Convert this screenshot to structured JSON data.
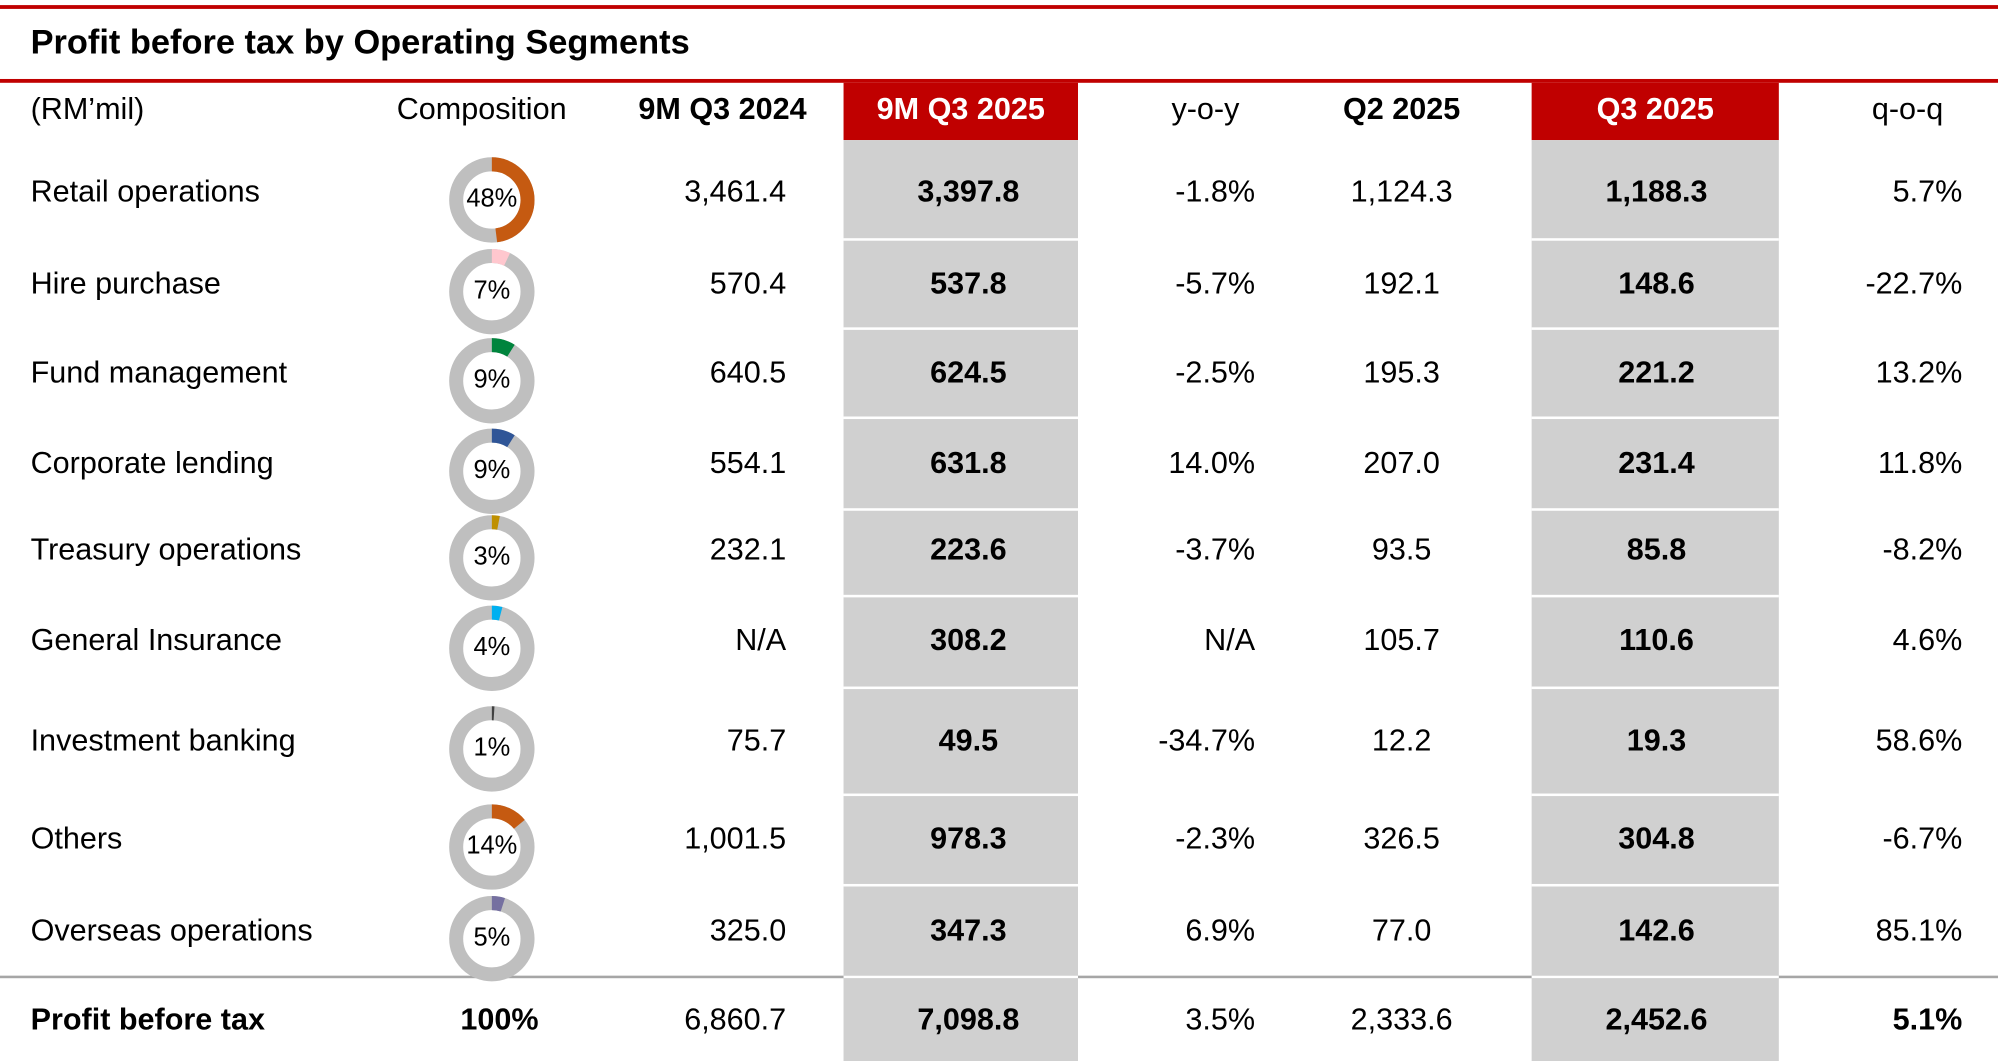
{
  "header": {
    "title": "Profit before tax by Operating Segments",
    "columns": [
      "(RM’mil)",
      "Composition",
      "9M Q3 2024",
      "9M Q3 2025",
      "y-o-y",
      "Q2 2025",
      "Q3 2025",
      "q-o-q"
    ]
  },
  "table": {
    "rows": [
      {
        "label": "Retail operations",
        "composition": {
          "value": 48,
          "label": "48%"
        },
        "color": "#c55a11",
        "cells": [
          "3,461.4",
          "3,397.8",
          "-1.8%",
          "1,124.3",
          "1,188.3",
          "5.7%"
        ]
      },
      {
        "label": "Hire purchase",
        "composition": {
          "value": 7,
          "label": "7%"
        },
        "color": "#ffc7ce",
        "cells": [
          "570.4",
          "537.8",
          "-5.7%",
          "192.1",
          "148.6",
          "-22.7%"
        ]
      },
      {
        "label": "Fund management",
        "composition": {
          "value": 9,
          "label": "9%"
        },
        "color": "#00843d",
        "cells": [
          "640.5",
          "624.5",
          "-2.5%",
          "195.3",
          "221.2",
          "13.2%"
        ]
      },
      {
        "label": "Corporate lending",
        "composition": {
          "value": 9,
          "label": "9%"
        },
        "color": "#2f5597",
        "cells": [
          "554.1",
          "631.8",
          "14.0%",
          "207.0",
          "231.4",
          "11.8%"
        ]
      },
      {
        "label": "Treasury operations",
        "composition": {
          "value": 3,
          "label": "3%"
        },
        "color": "#bf9000",
        "cells": [
          "232.1",
          "223.6",
          "-3.7%",
          "93.5",
          "85.8",
          "-8.2%"
        ]
      },
      {
        "label": "General Insurance",
        "composition": {
          "value": 4,
          "label": "4%"
        },
        "color": "#00b0f0",
        "cells": [
          "N/A",
          "308.2",
          "N/A",
          "105.7",
          "110.6",
          "4.6%"
        ]
      },
      {
        "label": "Investment banking",
        "composition": {
          "value": 1,
          "label": "1%"
        },
        "color": "#404040",
        "cells": [
          "75.7",
          "49.5",
          "-34.7%",
          "12.2",
          "19.3",
          "58.6%"
        ]
      },
      {
        "label": "Others",
        "composition": {
          "value": 14,
          "label": "14%"
        },
        "color": "#c55a11",
        "cells": [
          "1,001.5",
          "978.3",
          "-2.3%",
          "326.5",
          "304.8",
          "-6.7%"
        ]
      },
      {
        "label": "Overseas operations",
        "composition": {
          "value": 5,
          "label": "5%"
        },
        "color": "#7570a0",
        "cells": [
          "325.0",
          "347.3",
          "6.9%",
          "77.0",
          "142.6",
          "85.1%"
        ]
      }
    ],
    "total": {
      "label": "Profit before tax",
      "composition": "100%",
      "cells": [
        "6,860.7",
        "7,098.8",
        "3.5%",
        "2,333.6",
        "2,452.6",
        "5.1%"
      ]
    }
  }
}
